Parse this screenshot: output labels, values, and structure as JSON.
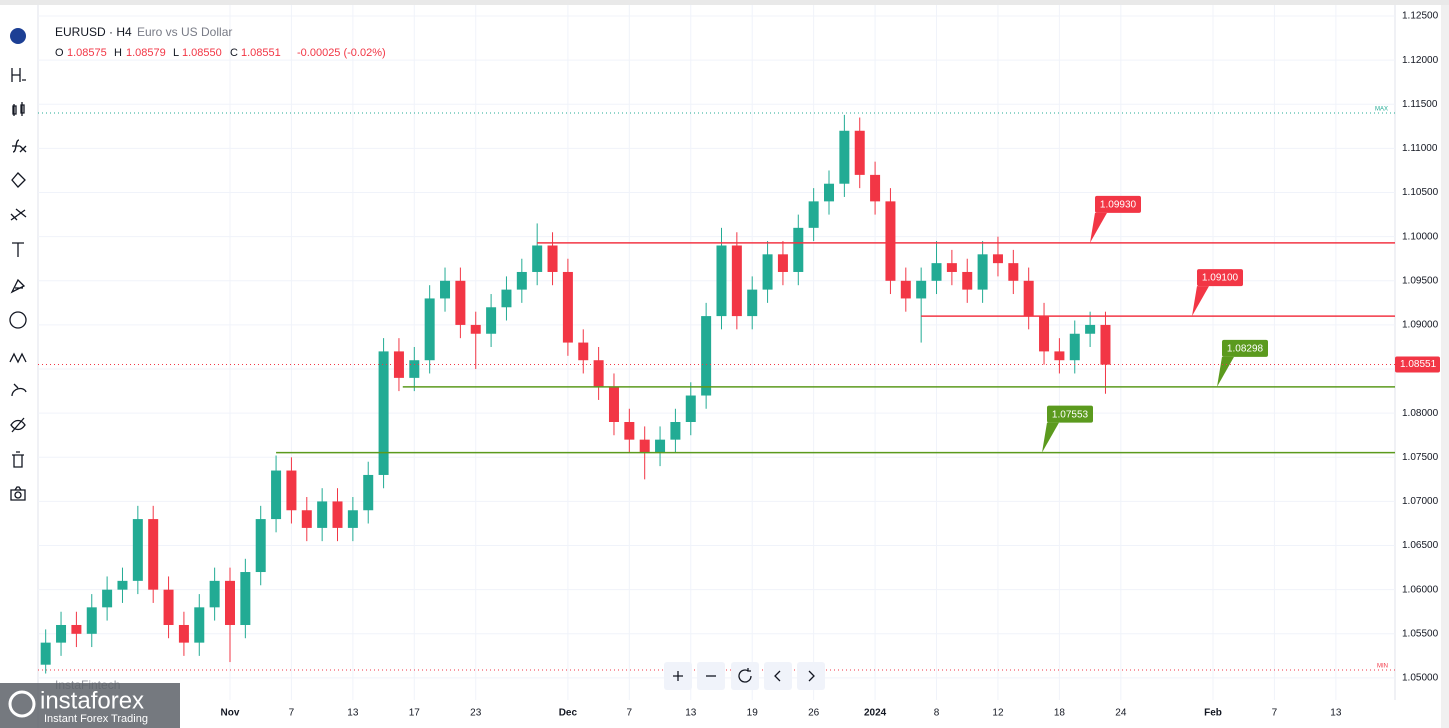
{
  "header": {
    "symbol": "EURUSD · H4",
    "description": "Euro vs US Dollar",
    "ohlc": [
      {
        "label": "O",
        "value": "1.08575"
      },
      {
        "label": "H",
        "value": "1.08579"
      },
      {
        "label": "L",
        "value": "1.08550"
      },
      {
        "label": "C",
        "value": "1.08551"
      }
    ],
    "change": "-0.00025 (-0.02%)"
  },
  "watermark": {
    "brand": "instaforex",
    "tagline": "Instant Forex Trading",
    "source": "InstaFintech"
  },
  "chart_data": {
    "type": "candlestick",
    "x": [
      -12,
      -11,
      -10,
      -9,
      -8,
      -7,
      -6,
      -5,
      -4,
      -3,
      -2,
      -1,
      0,
      1,
      2,
      3,
      4,
      5,
      6,
      7,
      8,
      9,
      10,
      11,
      12,
      13,
      14,
      15,
      16,
      17,
      18,
      19,
      20,
      21,
      22,
      23,
      24,
      25,
      26,
      27,
      28,
      29,
      30,
      31,
      32,
      33,
      34,
      35,
      36,
      37,
      38,
      39,
      40,
      41,
      42,
      43,
      44,
      45,
      46,
      47,
      48,
      49,
      50,
      51,
      52,
      53,
      54,
      55,
      56,
      57
    ],
    "open": [
      1.0515,
      1.054,
      1.056,
      1.055,
      1.058,
      1.06,
      1.061,
      1.068,
      1.06,
      1.056,
      1.054,
      1.058,
      1.061,
      1.056,
      1.062,
      1.068,
      1.0735,
      1.069,
      1.067,
      1.07,
      1.067,
      1.069,
      1.073,
      1.087,
      1.084,
      1.086,
      1.093,
      1.095,
      1.09,
      1.089,
      1.092,
      1.094,
      1.096,
      1.099,
      1.096,
      1.088,
      1.086,
      1.083,
      1.079,
      1.077,
      1.0755,
      1.077,
      1.079,
      1.082,
      1.091,
      1.099,
      1.091,
      1.094,
      1.098,
      1.096,
      1.101,
      1.104,
      1.106,
      1.112,
      1.107,
      1.104,
      1.095,
      1.093,
      1.095,
      1.097,
      1.096,
      1.094,
      1.098,
      1.097,
      1.095,
      1.091,
      1.087,
      1.086,
      1.089,
      1.09
    ],
    "high": [
      1.0555,
      1.0575,
      1.0575,
      1.0595,
      1.0615,
      1.0625,
      1.0695,
      1.0695,
      1.0615,
      1.0575,
      1.0595,
      1.0625,
      1.0625,
      1.0635,
      1.0695,
      1.0752,
      1.075,
      1.0705,
      1.0715,
      1.0715,
      1.0705,
      1.0745,
      1.0885,
      1.0885,
      1.0875,
      1.0945,
      1.0965,
      1.0965,
      1.0915,
      1.0935,
      1.0955,
      1.0975,
      1.1015,
      1.1005,
      1.0975,
      1.0895,
      1.0875,
      1.0845,
      1.0805,
      1.0785,
      1.0785,
      1.0805,
      1.0835,
      1.0925,
      1.101,
      1.1005,
      1.0955,
      1.0995,
      1.0995,
      1.1025,
      1.1055,
      1.1075,
      1.1138,
      1.1135,
      1.1085,
      1.1055,
      1.0965,
      1.0965,
      1.0995,
      1.0985,
      1.0975,
      1.0995,
      1.1,
      1.0985,
      1.0965,
      1.0925,
      1.0885,
      1.0905,
      1.0915,
      1.0915
    ],
    "low": [
      1.0505,
      1.0525,
      1.0535,
      1.0535,
      1.0565,
      1.0585,
      1.0595,
      1.0585,
      1.0545,
      1.0525,
      1.0525,
      1.0565,
      1.0518,
      1.0545,
      1.0605,
      1.0665,
      1.0675,
      1.0655,
      1.0655,
      1.0655,
      1.0655,
      1.0675,
      1.0715,
      1.0825,
      1.0825,
      1.0845,
      1.0915,
      1.0885,
      1.085,
      1.0875,
      1.0905,
      1.0925,
      1.0945,
      1.0945,
      1.0865,
      1.0845,
      1.0815,
      1.0775,
      1.0755,
      1.0725,
      1.074,
      1.0755,
      1.0775,
      1.0805,
      1.0895,
      1.0895,
      1.0895,
      1.0925,
      1.0945,
      1.0945,
      1.0995,
      1.1025,
      1.1045,
      1.1055,
      1.1025,
      1.0935,
      1.0915,
      1.088,
      1.0935,
      1.0945,
      1.0925,
      1.0925,
      1.0955,
      1.0935,
      1.0895,
      1.0855,
      1.0845,
      1.0845,
      1.0875,
      1.0822
    ],
    "close": [
      1.054,
      1.056,
      1.055,
      1.058,
      1.06,
      1.061,
      1.068,
      1.06,
      1.056,
      1.054,
      1.058,
      1.061,
      1.056,
      1.062,
      1.068,
      1.0735,
      1.069,
      1.067,
      1.07,
      1.067,
      1.069,
      1.073,
      1.087,
      1.084,
      1.086,
      1.093,
      1.095,
      1.09,
      1.089,
      1.092,
      1.094,
      1.096,
      1.099,
      1.096,
      1.088,
      1.086,
      1.083,
      1.079,
      1.077,
      1.0755,
      1.077,
      1.079,
      1.082,
      1.091,
      1.099,
      1.091,
      1.094,
      1.098,
      1.096,
      1.101,
      1.104,
      1.106,
      1.112,
      1.107,
      1.104,
      1.095,
      1.093,
      1.095,
      1.097,
      1.096,
      1.094,
      1.098,
      1.097,
      1.095,
      1.091,
      1.087,
      1.086,
      1.089,
      1.09,
      1.0855
    ],
    "up_color": "#22ab94",
    "down_color": "#f23645",
    "xlim": [
      -12.5,
      75.85
    ],
    "xticks": [
      {
        "value": 0,
        "label": "Nov"
      },
      {
        "value": 4,
        "label": "7"
      },
      {
        "value": 8,
        "label": "13"
      },
      {
        "value": 12,
        "label": "17"
      },
      {
        "value": 16,
        "label": "23"
      },
      {
        "value": 22,
        "label": "Dec"
      },
      {
        "value": 26,
        "label": "7"
      },
      {
        "value": 30,
        "label": "13"
      },
      {
        "value": 34,
        "label": "19"
      },
      {
        "value": 38,
        "label": "26"
      },
      {
        "value": 42,
        "label": "2024"
      },
      {
        "value": 46,
        "label": "8"
      },
      {
        "value": 50,
        "label": "12"
      },
      {
        "value": 54,
        "label": "18"
      },
      {
        "value": 58,
        "label": "24"
      },
      {
        "value": 64,
        "label": "Feb"
      },
      {
        "value": 68,
        "label": "7"
      },
      {
        "value": 72,
        "label": "13"
      }
    ],
    "ylim": [
      1.0475,
      1.12625
    ],
    "yticks": [
      {
        "value": 1.05,
        "label": "1.05000"
      },
      {
        "value": 1.055,
        "label": "1.05500"
      },
      {
        "value": 1.06,
        "label": "1.06000"
      },
      {
        "value": 1.065,
        "label": "1.06500"
      },
      {
        "value": 1.07,
        "label": "1.07000"
      },
      {
        "value": 1.075,
        "label": "1.07500"
      },
      {
        "value": 1.08,
        "label": "1.08000"
      },
      {
        "value": 1.085,
        "label": "1.08500"
      },
      {
        "value": 1.09,
        "label": "1.09000"
      },
      {
        "value": 1.095,
        "label": "1.09500"
      },
      {
        "value": 1.1,
        "label": "1.10000"
      },
      {
        "value": 1.105,
        "label": "1.10500"
      },
      {
        "value": 1.11,
        "label": "1.11000"
      },
      {
        "value": 1.115,
        "label": "1.11500"
      },
      {
        "value": 1.12,
        "label": "1.12000"
      },
      {
        "value": 1.125,
        "label": "1.12500"
      }
    ],
    "grid": true,
    "levels": [
      {
        "price": 1.0993,
        "label": "1.09930",
        "color": "#f23645",
        "start": 20
      },
      {
        "price": 1.091,
        "label": "1.09100",
        "color": "#f23645",
        "start": 45
      },
      {
        "price": 1.08298,
        "color": "#5b9a1e",
        "start": 11.25
      },
      {
        "price": 1.07553,
        "color": "#5b9a1e",
        "start": 3
      }
    ],
    "last_price": 1.08551,
    "last_color": "#f23645",
    "max": {
      "value": 1.11401,
      "label": "MAX"
    },
    "min": {
      "value": 1.0509,
      "label": "MIN"
    },
    "extreme_color": "#22ab94"
  }
}
